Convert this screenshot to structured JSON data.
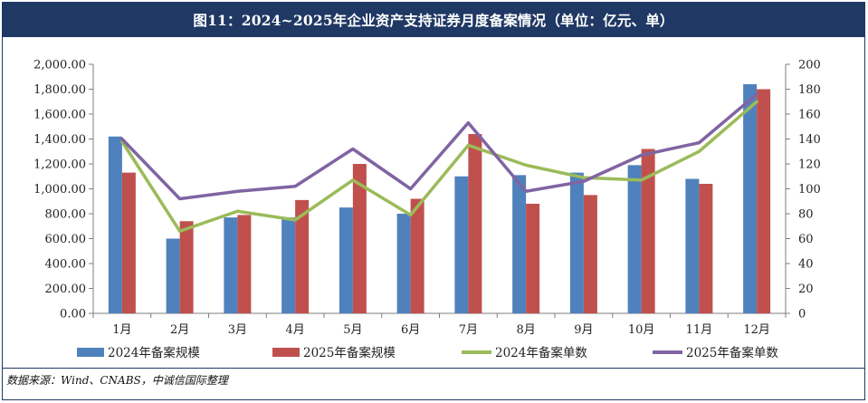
{
  "title": "图11：2024~2025年企业资产支持证券月度备案情况（单位：亿元、单）",
  "source": "数据来源：Wind、CNABS，中诚信国际整理",
  "colors": {
    "title_bg": "#1f3864",
    "bar2024": "#4f81bd",
    "bar2025": "#c0504d",
    "line2024": "#9bbb59",
    "line2025": "#8064a2"
  },
  "chart_data": {
    "type": "bar+line",
    "categories": [
      "1月",
      "2月",
      "3月",
      "4月",
      "5月",
      "6月",
      "7月",
      "8月",
      "9月",
      "10月",
      "11月",
      "12月"
    ],
    "left_axis": {
      "min": 0,
      "max": 2000,
      "step": 200,
      "ticks": [
        "0.00",
        "200.00",
        "400.00",
        "600.00",
        "800.00",
        "1,000.00",
        "1,200.00",
        "1,400.00",
        "1,600.00",
        "1,800.00",
        "2,000.00"
      ]
    },
    "right_axis": {
      "min": 0,
      "max": 200,
      "step": 20,
      "ticks": [
        "0",
        "20",
        "40",
        "60",
        "80",
        "100",
        "120",
        "140",
        "160",
        "180",
        "200"
      ]
    },
    "series": [
      {
        "name": "2024年备案规模",
        "kind": "bar",
        "axis": "left",
        "values": [
          1420,
          600,
          770,
          770,
          850,
          800,
          1100,
          1110,
          1130,
          1190,
          1080,
          1840
        ]
      },
      {
        "name": "2025年备案规模",
        "kind": "bar",
        "axis": "left",
        "values": [
          1130,
          740,
          790,
          910,
          1200,
          920,
          1440,
          880,
          950,
          1320,
          1040,
          1800
        ]
      },
      {
        "name": "2024年备案单数",
        "kind": "line",
        "axis": "right",
        "values": [
          138,
          66,
          82,
          75,
          107,
          79,
          135,
          119,
          109,
          107,
          130,
          170
        ]
      },
      {
        "name": "2025年备案单数",
        "kind": "line",
        "axis": "right",
        "values": [
          140,
          92,
          98,
          102,
          132,
          100,
          153,
          98,
          106,
          127,
          137,
          176
        ]
      }
    ]
  }
}
